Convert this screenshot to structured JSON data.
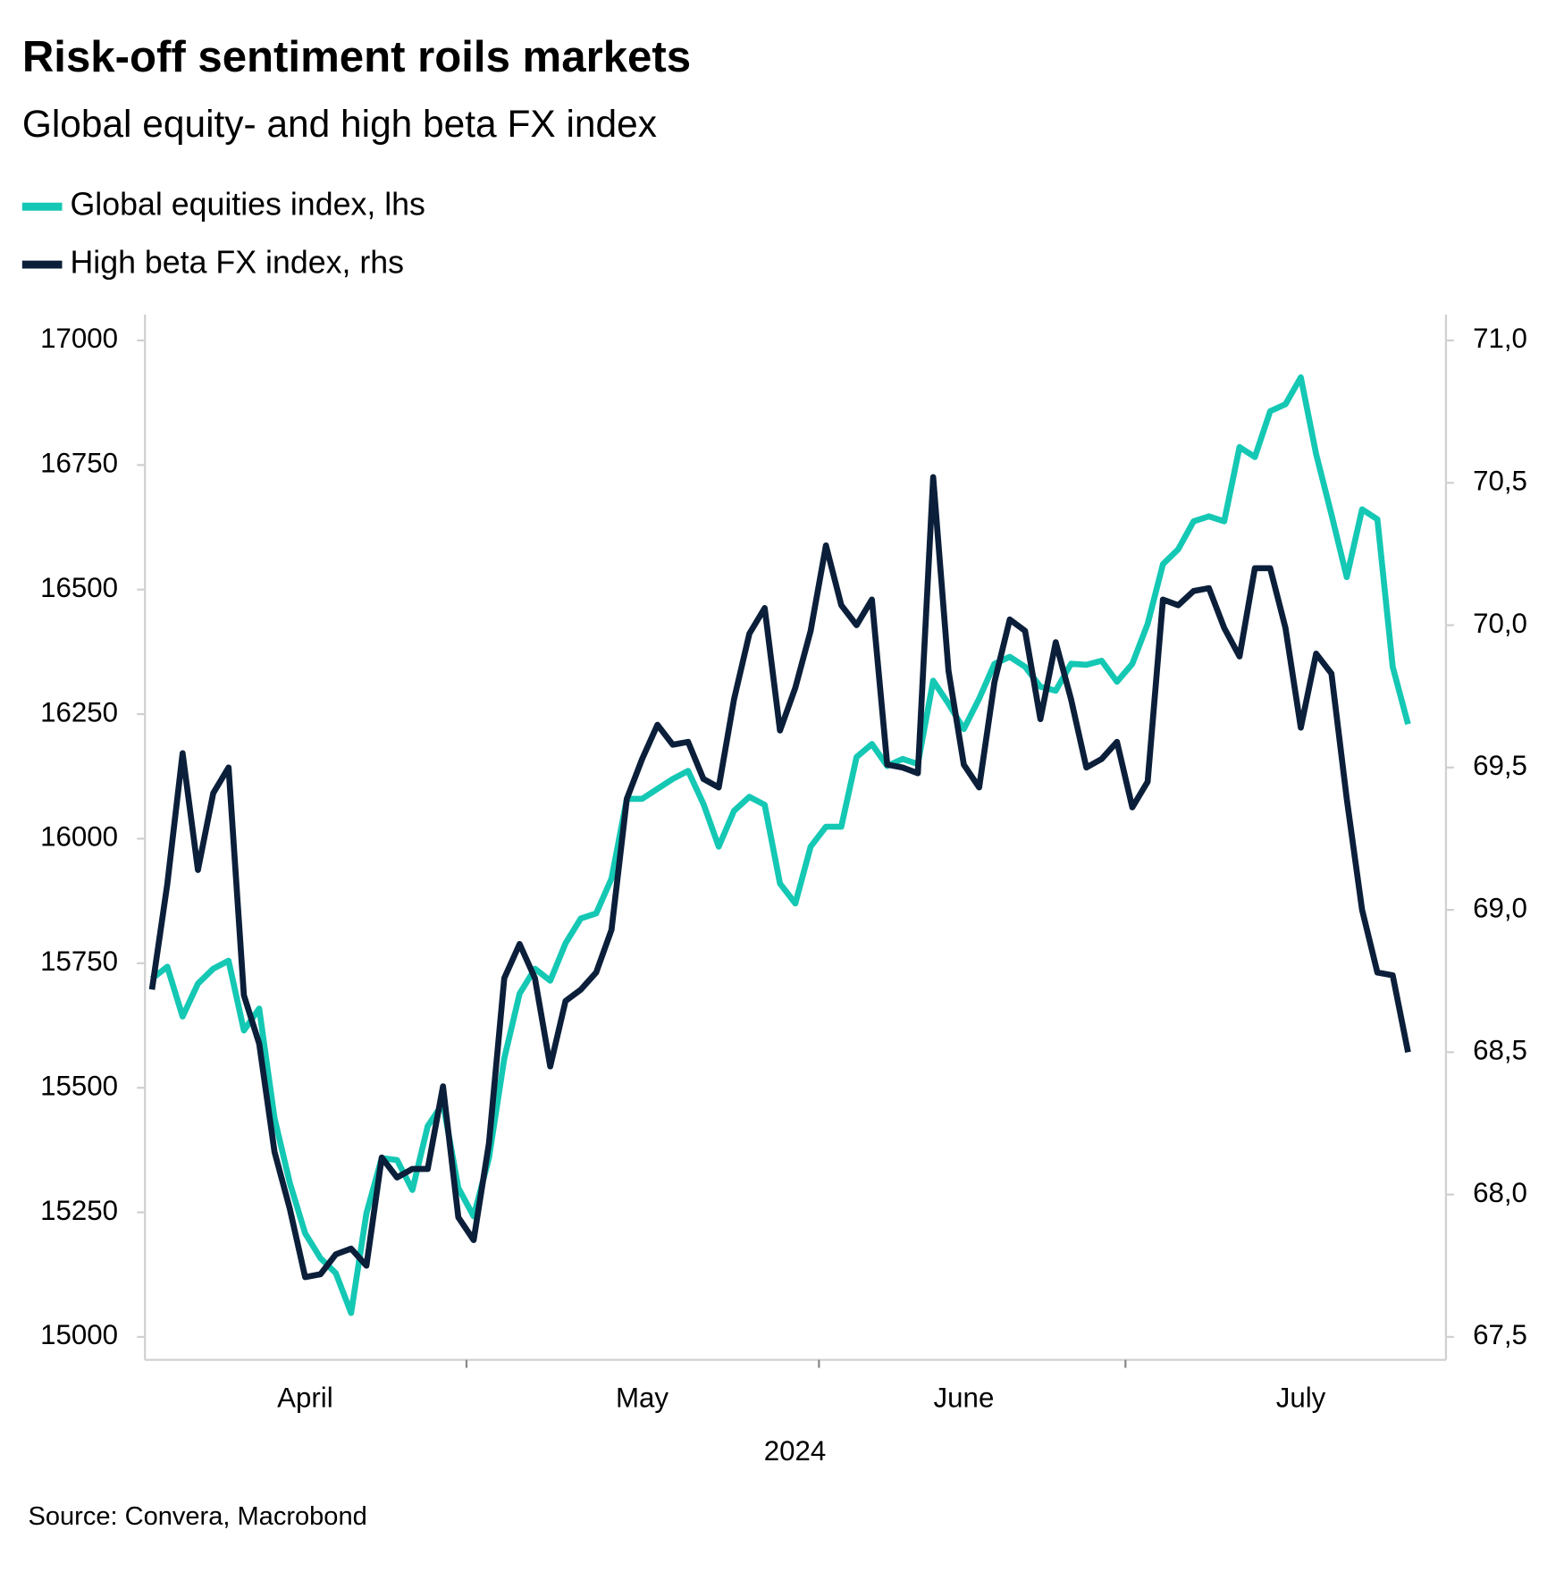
{
  "chart_data": {
    "type": "line",
    "title": "Risk-off sentiment roils markets",
    "subtitle": "Global equity- and high beta FX index",
    "xlabel": "2024",
    "source": "Source: Convera, Macrobond",
    "legend": "top-left",
    "categories": [
      null,
      null,
      null,
      null,
      null,
      null,
      null,
      null,
      null,
      null,
      "April",
      null,
      null,
      null,
      null,
      null,
      null,
      null,
      null,
      null,
      null,
      null,
      null,
      null,
      null,
      null,
      null,
      null,
      null,
      null,
      null,
      null,
      "May",
      null,
      null,
      null,
      null,
      null,
      null,
      null,
      null,
      null,
      null,
      null,
      null,
      null,
      null,
      null,
      null,
      null,
      null,
      null,
      null,
      "June",
      null,
      null,
      null,
      null,
      null,
      null,
      null,
      null,
      null,
      null,
      null,
      null,
      null,
      null,
      null,
      null,
      null,
      null,
      null,
      null,
      null,
      "July",
      null,
      null,
      null,
      null,
      null,
      null,
      null
    ],
    "series": [
      {
        "name": "Global equities index, lhs",
        "color": "#14c8b4",
        "axis": "y",
        "values": [
          15719,
          15743,
          15643,
          15709,
          15739,
          15755,
          15615,
          15659,
          15439,
          15309,
          15208,
          15158,
          15128,
          15048,
          15248,
          15359,
          15355,
          15295,
          15423,
          15469,
          15299,
          15242,
          15359,
          15559,
          15689,
          15739,
          15715,
          15790,
          15840,
          15850,
          15920,
          16080,
          16080,
          16100,
          16120,
          16136,
          16070,
          15984,
          16056,
          16084,
          16068,
          15910,
          15870,
          15984,
          16024,
          16024,
          16164,
          16190,
          16146,
          16160,
          16150,
          16317,
          16271,
          16220,
          16281,
          16351,
          16365,
          16345,
          16305,
          16297,
          16351,
          16349,
          16357,
          16315,
          16351,
          16431,
          16551,
          16581,
          16637,
          16647,
          16637,
          16786,
          16766,
          16858,
          16872,
          16926,
          16772,
          16651,
          16525,
          16661,
          16641,
          16345,
          16230
        ]
      },
      {
        "name": "High beta FX index, rhs",
        "color": "#0b1f3a",
        "axis": "y2",
        "values": [
          68.72,
          69.09,
          69.55,
          69.14,
          69.41,
          69.5,
          68.7,
          68.53,
          68.15,
          67.95,
          67.71,
          67.72,
          67.79,
          67.81,
          67.75,
          68.13,
          68.06,
          68.09,
          68.09,
          68.38,
          67.92,
          67.84,
          68.18,
          68.76,
          68.88,
          68.76,
          68.45,
          68.68,
          68.72,
          68.78,
          68.93,
          69.39,
          69.53,
          69.65,
          69.58,
          69.59,
          69.46,
          69.43,
          69.74,
          69.97,
          70.06,
          69.63,
          69.78,
          69.98,
          70.28,
          70.07,
          70.0,
          70.09,
          69.51,
          69.5,
          69.48,
          70.52,
          69.84,
          69.51,
          69.43,
          69.8,
          70.02,
          69.98,
          69.67,
          69.94,
          69.74,
          69.5,
          69.53,
          69.59,
          69.36,
          69.45,
          70.09,
          70.07,
          70.12,
          70.13,
          69.99,
          69.89,
          70.2,
          70.2,
          69.99,
          69.64,
          69.9,
          69.83,
          69.39,
          69.0,
          68.78,
          68.77,
          68.5
        ]
      }
    ],
    "ylim": [
      15000,
      17000
    ],
    "yticks": [
      15000,
      15250,
      15500,
      15750,
      16000,
      16250,
      16500,
      16750,
      17000
    ],
    "y2lim": [
      67.5,
      71.0
    ],
    "y2ticks": [
      {
        "value": 67.5,
        "label": "67,5"
      },
      {
        "value": 68.0,
        "label": "68,0"
      },
      {
        "value": 68.5,
        "label": "68,5"
      },
      {
        "value": 69.0,
        "label": "69,0"
      },
      {
        "value": 69.5,
        "label": "69,5"
      },
      {
        "value": 70.0,
        "label": "70,0"
      },
      {
        "value": 70.5,
        "label": "70,5"
      },
      {
        "value": 71.0,
        "label": "71,0"
      }
    ],
    "grid": false
  }
}
